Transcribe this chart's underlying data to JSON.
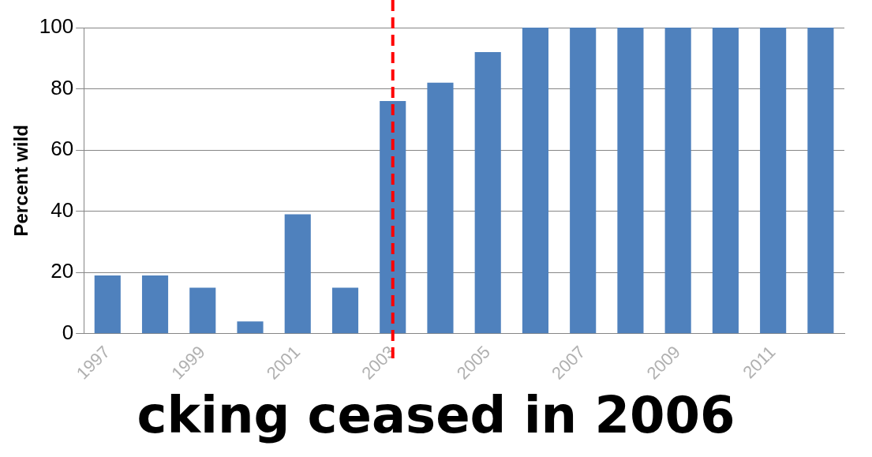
{
  "chart_data": {
    "type": "bar",
    "ylabel": "Percent wild",
    "categories": [
      "1997",
      null,
      "1999",
      null,
      "2001",
      null,
      "2003",
      null,
      "2005",
      null,
      "2007",
      null,
      "2009",
      null,
      "2011",
      null
    ],
    "values": [
      19,
      19,
      15,
      4,
      39,
      15,
      76,
      82,
      92,
      100,
      100,
      100,
      100,
      100,
      100,
      100
    ],
    "color": "#4f81bd",
    "ylim": [
      0,
      100
    ],
    "yticks": [
      0,
      20,
      40,
      60,
      80,
      100
    ],
    "grid": "y",
    "legend": false,
    "ref_lines": [
      {
        "axis": "x",
        "value": "2003",
        "color": "#ff0000",
        "line_style": "dashed"
      }
    ],
    "annotations": [
      "cking ceased in 2006"
    ]
  }
}
